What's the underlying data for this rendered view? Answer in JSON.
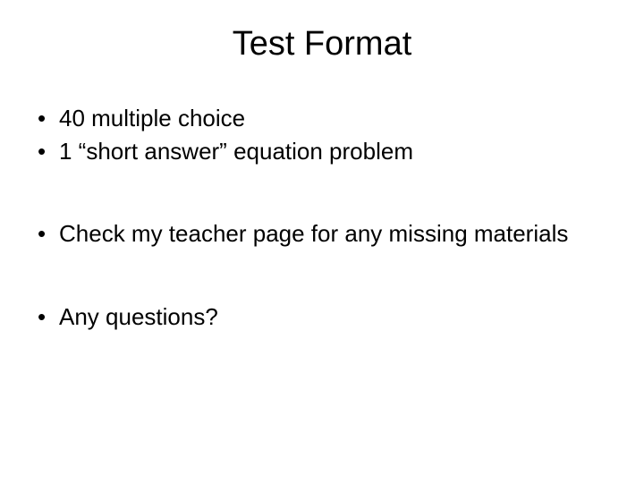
{
  "slide": {
    "title": "Test Format",
    "bullets": {
      "group1": [
        "40 multiple choice",
        "1 “short answer” equation problem"
      ],
      "group2": [
        "Check my teacher page for any missing materials"
      ],
      "group3": [
        "Any questions?"
      ]
    }
  },
  "style": {
    "background_color": "#ffffff",
    "text_color": "#000000",
    "title_fontsize": 38,
    "body_fontsize": 26,
    "font_family": "Arial"
  }
}
